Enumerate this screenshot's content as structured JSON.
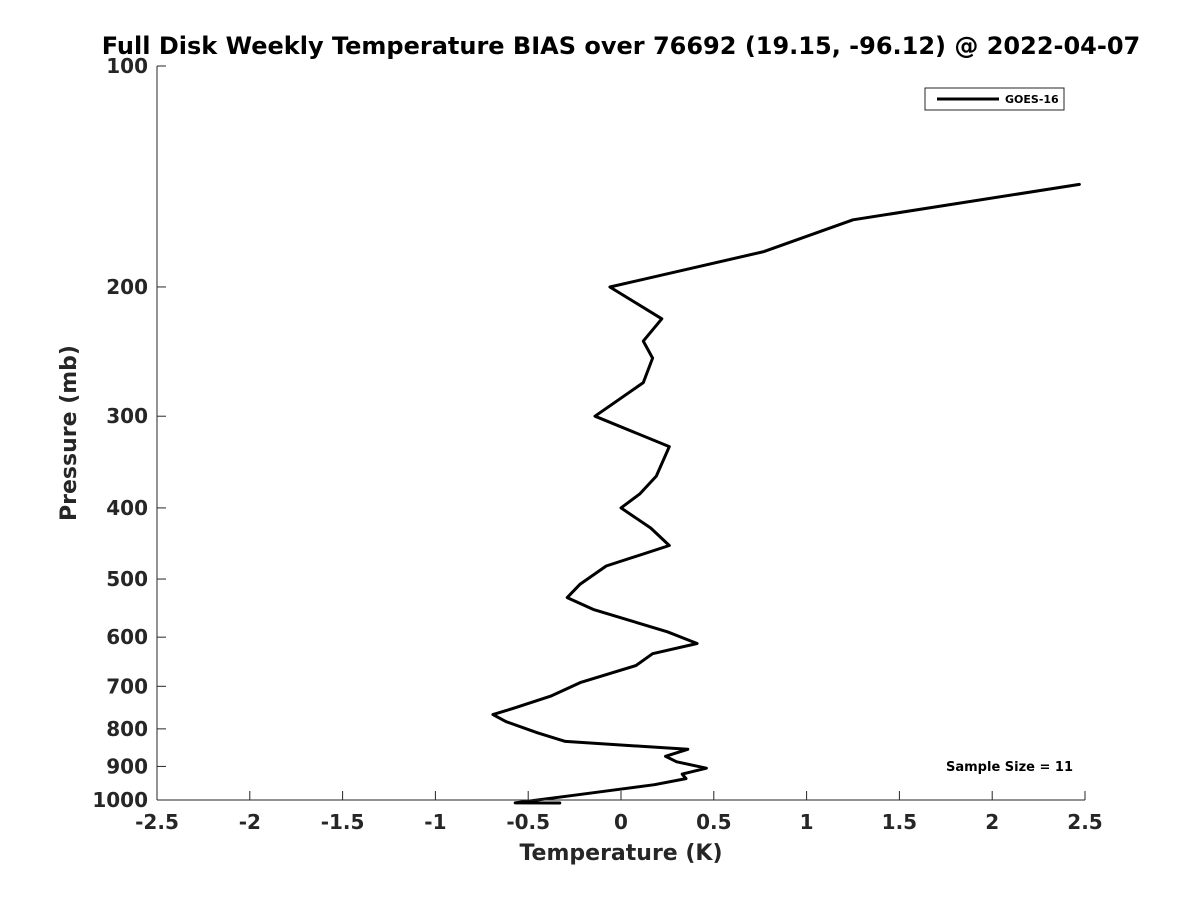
{
  "chart_data": {
    "type": "line",
    "title": "Full Disk Weekly Temperature BIAS over 76692 (19.15, -96.12) @ 2022-04-07",
    "xlabel": "Temperature (K)",
    "ylabel": "Pressure (mb)",
    "xlim": [
      -2.5,
      2.5
    ],
    "ylim": [
      100,
      1000
    ],
    "y_scale": "log",
    "y_reversed": true,
    "x_ticks": [
      "-2.5",
      "-2",
      "-1.5",
      "-1",
      "-0.5",
      "0",
      "0.5",
      "1",
      "1.5",
      "2",
      "2.5"
    ],
    "y_ticks": [
      "100",
      "200",
      "300",
      "400",
      "500",
      "600",
      "700",
      "800",
      "900",
      "1000"
    ],
    "grid": false,
    "legend_position": "top-right",
    "annotation": "Sample Size = 11",
    "series": [
      {
        "name": "GOES-16",
        "color": "#000000",
        "x": [
          2.47,
          1.25,
          0.77,
          -0.06,
          0.22,
          0.12,
          0.17,
          0.12,
          -0.14,
          0.26,
          0.19,
          0.1,
          0.0,
          0.16,
          0.26,
          -0.08,
          -0.22,
          -0.29,
          -0.15,
          0.25,
          0.41,
          0.17,
          0.08,
          -0.22,
          -0.38,
          -0.58,
          -0.69,
          -0.62,
          -0.45,
          -0.3,
          0.36,
          0.24,
          0.3,
          0.46,
          0.33,
          0.35,
          0.18,
          -0.05,
          -0.25,
          -0.57,
          -0.34,
          -0.33
        ],
        "y": [
          145,
          162,
          179,
          200,
          221,
          237,
          250,
          270,
          300,
          330,
          362,
          383,
          400,
          426,
          450,
          480,
          508,
          530,
          550,
          590,
          612,
          632,
          656,
          692,
          722,
          750,
          765,
          782,
          810,
          832,
          853,
          872,
          887,
          905,
          922,
          935,
          953,
          970,
          985,
          1009,
          1025,
          1030
        ]
      }
    ]
  }
}
